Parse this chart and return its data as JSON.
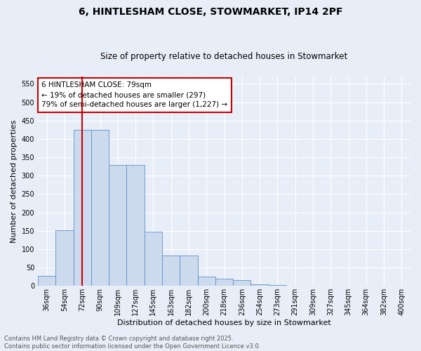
{
  "title_line1": "6, HINTLESHAM CLOSE, STOWMARKET, IP14 2PF",
  "title_line2": "Size of property relative to detached houses in Stowmarket",
  "xlabel": "Distribution of detached houses by size in Stowmarket",
  "ylabel": "Number of detached properties",
  "bar_labels": [
    "36sqm",
    "54sqm",
    "72sqm",
    "90sqm",
    "109sqm",
    "127sqm",
    "145sqm",
    "163sqm",
    "182sqm",
    "200sqm",
    "218sqm",
    "236sqm",
    "254sqm",
    "273sqm",
    "291sqm",
    "309sqm",
    "327sqm",
    "345sqm",
    "364sqm",
    "382sqm",
    "400sqm"
  ],
  "bar_values": [
    28,
    152,
    425,
    425,
    330,
    330,
    147,
    82,
    82,
    25,
    20,
    15,
    5,
    2,
    1,
    0,
    0,
    0,
    0,
    0,
    0
  ],
  "bar_color": "#ccdaee",
  "bar_edge_color": "#6090c8",
  "vline_x": 2.0,
  "annotation_text": "6 HINTLESHAM CLOSE: 79sqm\n← 19% of detached houses are smaller (297)\n79% of semi-detached houses are larger (1,227) →",
  "annotation_box_color": "#ffffff",
  "annotation_edge_color": "#cc0000",
  "vline_color": "#cc0000",
  "background_color": "#e8eef8",
  "ylim": [
    0,
    570
  ],
  "footer_line1": "Contains HM Land Registry data © Crown copyright and database right 2025.",
  "footer_line2": "Contains public sector information licensed under the Open Government Licence v3.0.",
  "grid_color": "#ffffff",
  "title_fontsize": 10,
  "subtitle_fontsize": 8.5,
  "axis_label_fontsize": 8,
  "tick_fontsize": 7,
  "annotation_fontsize": 7.5,
  "footer_fontsize": 6
}
